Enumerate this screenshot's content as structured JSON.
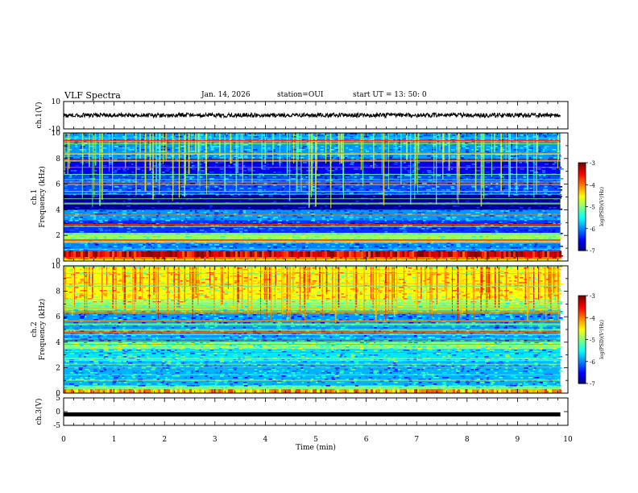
{
  "header": {
    "title": "VLF Spectra",
    "date": "Jan. 14, 2026",
    "station": "station=OUI",
    "start": "start UT =  13: 50: 0"
  },
  "chart_data": [
    {
      "type": "line",
      "panel": "ch1-waveform",
      "ylabel": "ch.1(V)",
      "ylim": [
        -10,
        10
      ],
      "yticks": [
        "10",
        "-10"
      ],
      "xlim": [
        0,
        10
      ],
      "description_level": 0,
      "series_color": "#000000"
    },
    {
      "type": "heatmap",
      "panel": "ch1-spectrogram",
      "ylabel_line1": "ch.1",
      "ylabel_line2": "Frequency (kHz)",
      "ylim": [
        0,
        10
      ],
      "yticks": [
        "0",
        "2",
        "4",
        "6",
        "8",
        "10"
      ],
      "xlim": [
        0,
        10
      ],
      "data_end_min": 9.85,
      "colorbar": {
        "min": -7,
        "max": -3,
        "ticks": [
          "-3",
          "-4",
          "-5",
          "-6",
          "-7"
        ],
        "label": "log(PSD)(V²/Hz)"
      },
      "bands": [
        {
          "f0": 0.0,
          "f1": 0.3,
          "level": -4.0
        },
        {
          "f0": 0.3,
          "f1": 0.7,
          "level": -3.4
        },
        {
          "f0": 0.7,
          "f1": 1.5,
          "level": -6.0
        },
        {
          "f0": 1.5,
          "f1": 2.2,
          "level": -4.9
        },
        {
          "f0": 2.2,
          "f1": 3.2,
          "level": -6.3
        },
        {
          "f0": 3.2,
          "f1": 4.0,
          "level": -5.9
        },
        {
          "f0": 4.0,
          "f1": 5.2,
          "level": -6.9
        },
        {
          "f0": 5.2,
          "f1": 6.8,
          "level": -6.2
        },
        {
          "f0": 6.8,
          "f1": 8.0,
          "level": -6.5
        },
        {
          "f0": 8.0,
          "f1": 10.0,
          "level": -5.9
        }
      ]
    },
    {
      "type": "heatmap",
      "panel": "ch2-spectrogram",
      "ylabel_line1": "ch.2",
      "ylabel_line2": "Frequency (kHz)",
      "ylim": [
        0,
        10
      ],
      "yticks": [
        "0",
        "2",
        "4",
        "6",
        "8",
        "10"
      ],
      "xlim": [
        0,
        10
      ],
      "data_end_min": 9.85,
      "colorbar": {
        "min": -7,
        "max": -3,
        "ticks": [
          "-3",
          "-4",
          "-5",
          "-6",
          "-7"
        ],
        "label": "log(PSD)(V²/Hz)"
      },
      "bands": [
        {
          "f0": 0.0,
          "f1": 0.6,
          "level": -5.2
        },
        {
          "f0": 0.6,
          "f1": 2.5,
          "level": -5.8
        },
        {
          "f0": 2.5,
          "f1": 3.5,
          "level": -5.6
        },
        {
          "f0": 3.5,
          "f1": 4.0,
          "level": -5.0
        },
        {
          "f0": 4.0,
          "f1": 6.5,
          "level": -5.9
        },
        {
          "f0": 6.5,
          "f1": 7.2,
          "level": -5.0
        },
        {
          "f0": 7.2,
          "f1": 10.0,
          "level": -4.5
        }
      ]
    },
    {
      "type": "line",
      "panel": "ch3-waveform",
      "ylabel": "ch.3(V)",
      "ylim": [
        -5,
        5
      ],
      "yticks": [
        "5",
        "0",
        "-5"
      ],
      "xlim": [
        0,
        10
      ],
      "description_level": -1,
      "xlabel": "Time (min)",
      "xticks": [
        "0",
        "1",
        "2",
        "3",
        "4",
        "5",
        "6",
        "7",
        "8",
        "9",
        "10"
      ],
      "series_color": "#000000"
    }
  ]
}
